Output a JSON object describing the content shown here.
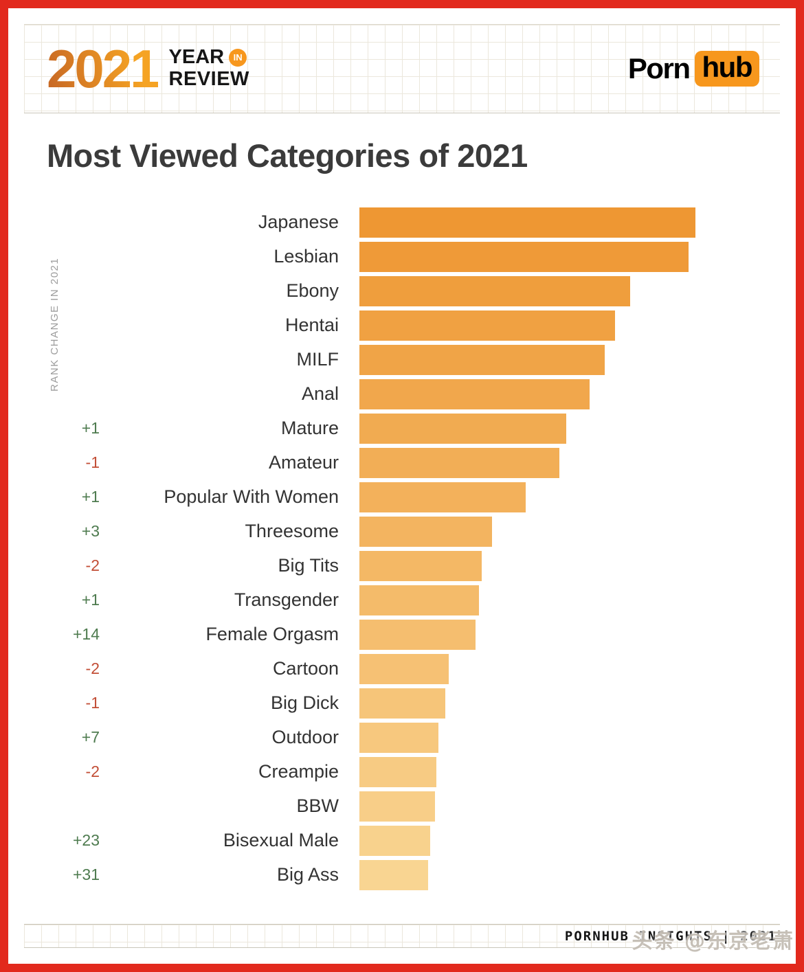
{
  "header": {
    "logo_year": "2021",
    "logo_line1": "YEAR",
    "logo_badge": "IN",
    "logo_line2": "REVIEW",
    "brand_part1": "Porn",
    "brand_part2": "hub"
  },
  "title": "Most Viewed Categories of 2021",
  "axis_label": "RANK CHANGE IN 2021",
  "chart_data": {
    "type": "bar",
    "orientation": "horizontal",
    "title": "Most Viewed Categories of 2021",
    "categories": [
      "Japanese",
      "Lesbian",
      "Ebony",
      "Hentai",
      "MILF",
      "Anal",
      "Mature",
      "Amateur",
      "Popular With Women",
      "Threesome",
      "Big Tits",
      "Transgender",
      "Female Orgasm",
      "Cartoon",
      "Big Dick",
      "Outdoor",
      "Creampie",
      "BBW",
      "Bisexual Male",
      "Big Ass"
    ],
    "values": [
      100,
      98,
      80.5,
      76,
      73,
      68.5,
      61.5,
      59.5,
      49.5,
      39.5,
      36.5,
      35.5,
      34.5,
      26.5,
      25.5,
      23.5,
      23,
      22.5,
      21,
      20.5
    ],
    "rank_changes": [
      "",
      "",
      "",
      "",
      "",
      "",
      "+1",
      "-1",
      "+1",
      "+3",
      "-2",
      "+1",
      "+14",
      "-2",
      "-1",
      "+7",
      "-2",
      "",
      "+23",
      "+31"
    ],
    "xlabel": "",
    "ylabel": "RANK CHANGE IN 2021",
    "xlim": [
      0,
      125
    ],
    "grid": false,
    "legend": "none",
    "bar_color_top": "#EE9733",
    "bar_color_bottom": "#F9D592",
    "rank_up_color": "#4E7B4F",
    "rank_down_color": "#C24E36"
  },
  "footer": {
    "text": "PORNHUB INSIGHTS | 2021",
    "watermark": "头条 @东京老萧"
  },
  "colors": {
    "frame_red": "#E2291D",
    "accent_orange": "#F7971D",
    "title_text": "#3B3B3B",
    "grid_line": "#EBE7DC"
  }
}
